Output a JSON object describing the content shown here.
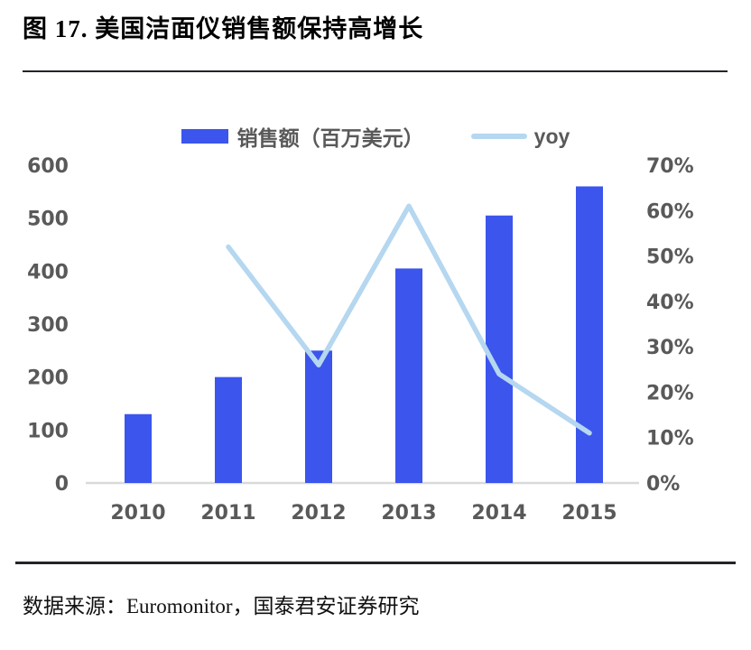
{
  "figure": {
    "title": "图 17. 美国洁面仪销售额保持高增长",
    "source_note": "数据来源：Euromonitor，国泰君安证券研究"
  },
  "legend": {
    "bar_series_label": "销售额（百万美元）",
    "line_series_label": "yoy"
  },
  "colors": {
    "bar_fill": "#3B55ED",
    "line_stroke": "#B5D7F0",
    "axis_text": "#595959",
    "baseline": "#D9D9D9"
  },
  "chart_data": {
    "type": "bar",
    "subtype": "combo-bar-line-dual-axis",
    "title": "图 17. 美国洁面仪销售额保持高增长",
    "categories": [
      "2010",
      "2011",
      "2012",
      "2013",
      "2014",
      "2015"
    ],
    "series": [
      {
        "name": "销售额（百万美元）",
        "type": "bar",
        "axis": "left",
        "values": [
          130,
          200,
          250,
          405,
          505,
          560
        ]
      },
      {
        "name": "yoy",
        "type": "line",
        "axis": "right",
        "unit": "%",
        "values": [
          null,
          52,
          26,
          61,
          24,
          11
        ]
      }
    ],
    "left_axis": {
      "min": 0,
      "max": 600,
      "step": 100,
      "tick_labels": [
        "0",
        "100",
        "200",
        "300",
        "400",
        "500",
        "600"
      ]
    },
    "right_axis": {
      "min": 0,
      "max": 70,
      "step": 10,
      "tick_labels": [
        "0%",
        "10%",
        "20%",
        "30%",
        "40%",
        "50%",
        "60%",
        "70%"
      ]
    },
    "grid": false,
    "legend_position": "top-center"
  }
}
